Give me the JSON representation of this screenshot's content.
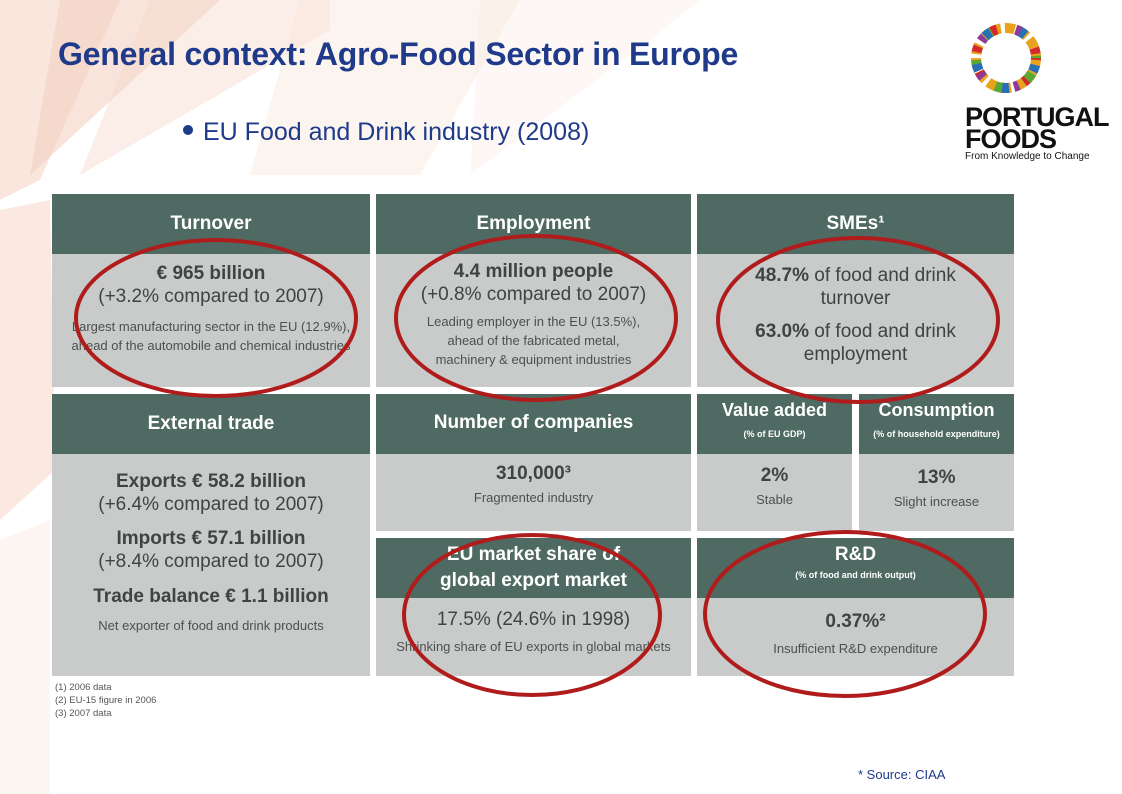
{
  "slide": {
    "title": "General context: Agro-Food Sector in Europe",
    "bullet": "EU Food and Drink industry (2008)",
    "source": "* Source: CIAA"
  },
  "logo": {
    "word_line1": "PORTUGAL",
    "word_line2": "FOODS",
    "tagline": "From Knowledge to Change"
  },
  "panels": {
    "turnover": {
      "header": "Turnover",
      "value": "€ 965 billion",
      "change": "(+3.2% compared to 2007)",
      "note_line1": "Largest manufacturing sector in the EU (12.9%),",
      "note_line2": "ahead of the automobile and chemical industries"
    },
    "employment": {
      "header": "Employment",
      "value": "4.4 million people",
      "change": "(+0.8% compared to 2007)",
      "note_line1": "Leading employer in the EU (13.5%),",
      "note_line2": "ahead of the fabricated metal,",
      "note_line3": "machinery & equipment industries"
    },
    "smes": {
      "header": "SMEs¹",
      "stat1_value": "48.7%",
      "stat1_text_a": " of food and drink",
      "stat1_text_b": "turnover",
      "stat2_value": "63.0%",
      "stat2_text_a": " of food and drink",
      "stat2_text_b": "employment"
    },
    "external_trade": {
      "header": "External trade",
      "exports_value": "Exports € 58.2 billion",
      "exports_change": "(+6.4% compared to 2007)",
      "imports_value": "Imports € 57.1 billion",
      "imports_change": "(+8.4% compared to 2007)",
      "balance": "Trade balance € 1.1 billion",
      "note": "Net exporter of food and drink products"
    },
    "companies": {
      "header": "Number of companies",
      "value": "310,000³",
      "note": "Fragmented industry"
    },
    "value_added": {
      "header": "Value added",
      "subheader": "(% of EU GDP)",
      "value": "2%",
      "note": "Stable"
    },
    "consumption": {
      "header": "Consumption",
      "subheader": "(% of household expenditure)",
      "value": "13%",
      "note": "Slight increase"
    },
    "market_share": {
      "header_line1": "EU market share of",
      "header_line2": "global export market",
      "value": "17.5% (24.6% in 1998)",
      "note": "Shrinking share of EU exports in global markets"
    },
    "rd": {
      "header": "R&D",
      "subheader": "(% of food and drink output)",
      "value": "0.37%²",
      "note": "Insufficient R&D expenditure"
    }
  },
  "footnotes": [
    "(1) 2006 data",
    "(2) EU-15 figure in 2006",
    "(3) 2007 data"
  ],
  "colors": {
    "title": "#1f3a8a",
    "panel_header": "#4e6a62",
    "panel_body": "#c8cbca",
    "highlight_circle": "#b01c1c"
  }
}
